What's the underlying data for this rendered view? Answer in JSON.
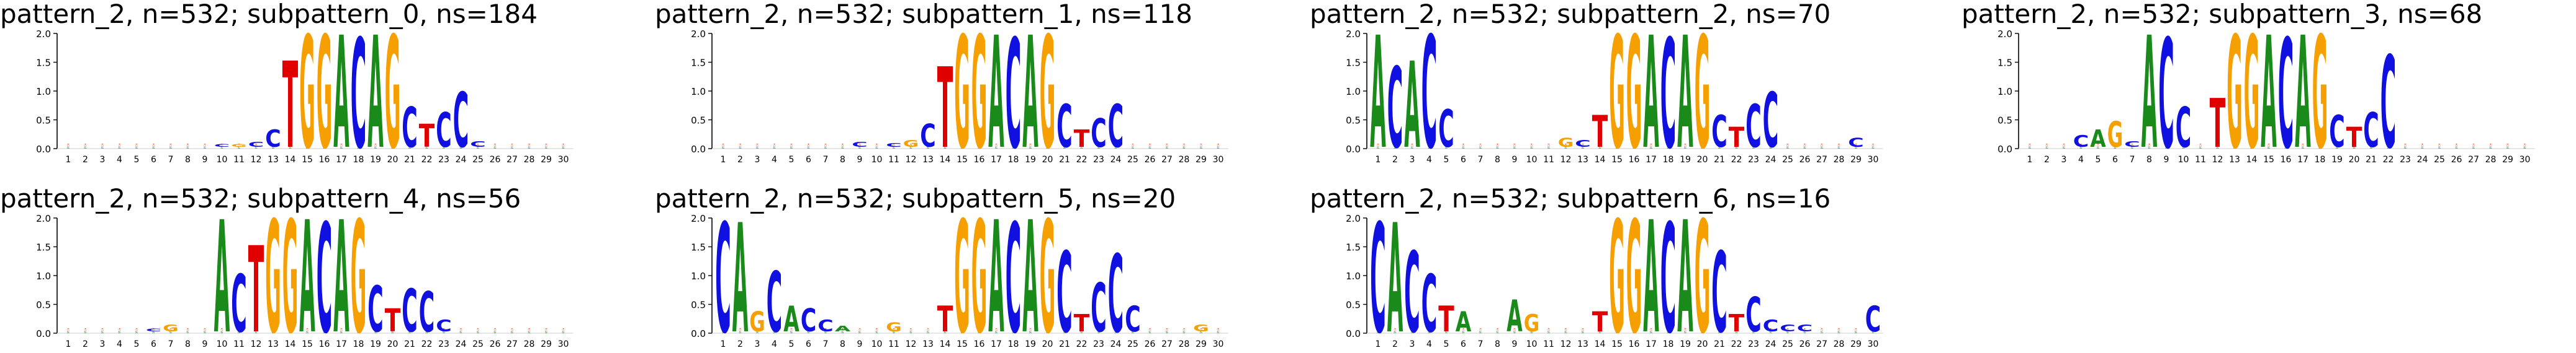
{
  "logo_colors": {
    "A": "#1a8a1a",
    "C": "#1010e0",
    "G": "#f5a000",
    "T": "#e00000"
  },
  "y_axis": {
    "ticks": [
      "0.0",
      "0.5",
      "1.0",
      "1.5",
      "2.0"
    ],
    "max": 2.0
  },
  "positions": [
    "1",
    "2",
    "3",
    "4",
    "5",
    "6",
    "7",
    "8",
    "9",
    "10",
    "11",
    "12",
    "13",
    "14",
    "15",
    "16",
    "17",
    "18",
    "19",
    "20",
    "21",
    "22",
    "23",
    "24",
    "25",
    "26",
    "27",
    "28",
    "29",
    "30"
  ],
  "panels": [
    {
      "title": "pattern_2, n=532; subpattern_0, ns=184",
      "motif": {
        "10": {
          "C": 0.05
        },
        "11": {
          "G": 0.05
        },
        "12": {
          "C": 0.08
        },
        "13": {
          "C": 0.3
        },
        "14": {
          "T": 1.5
        },
        "15": {
          "G": 1.95
        },
        "16": {
          "G": 1.95
        },
        "17": {
          "A": 1.95
        },
        "18": {
          "C": 1.9
        },
        "19": {
          "A": 1.95
        },
        "20": {
          "G": 1.95
        },
        "21": {
          "C": 0.7
        },
        "22": {
          "T": 0.4
        },
        "23": {
          "C": 0.6
        },
        "24": {
          "C": 0.95
        },
        "25": {
          "C": 0.1
        }
      }
    },
    {
      "title": "pattern_2, n=532; subpattern_1, ns=118",
      "motif": {
        "9": {
          "C": 0.08
        },
        "11": {
          "C": 0.06
        },
        "12": {
          "G": 0.12
        },
        "13": {
          "C": 0.4
        },
        "14": {
          "T": 1.4
        },
        "15": {
          "G": 1.95
        },
        "16": {
          "G": 1.95
        },
        "17": {
          "A": 1.95
        },
        "18": {
          "C": 1.9
        },
        "19": {
          "A": 1.95
        },
        "20": {
          "G": 1.95
        },
        "21": {
          "C": 0.75
        },
        "22": {
          "T": 0.3
        },
        "23": {
          "C": 0.5
        },
        "24": {
          "C": 0.75
        }
      }
    },
    {
      "title": "pattern_2, n=532; subpattern_2, ns=70",
      "motif": {
        "1": {
          "A": 1.95
        },
        "2": {
          "C": 1.4
        },
        "3": {
          "A": 1.5
        },
        "4": {
          "C": 1.95
        },
        "5": {
          "C": 0.65
        },
        "12": {
          "G": 0.15
        },
        "13": {
          "C": 0.12
        },
        "14": {
          "T": 0.55
        },
        "15": {
          "G": 1.95
        },
        "16": {
          "G": 1.95
        },
        "17": {
          "A": 1.95
        },
        "18": {
          "C": 1.9
        },
        "19": {
          "A": 1.95
        },
        "20": {
          "G": 1.95
        },
        "21": {
          "C": 0.55
        },
        "22": {
          "T": 0.35
        },
        "23": {
          "C": 0.75
        },
        "24": {
          "C": 0.95
        },
        "29": {
          "C": 0.15
        }
      }
    },
    {
      "title": "pattern_2, n=532; subpattern_3, ns=68",
      "motif": {
        "4": {
          "C": 0.2
        },
        "5": {
          "A": 0.3
        },
        "6": {
          "G": 0.45
        },
        "7": {
          "C": 0.1
        },
        "8": {
          "A": 1.95
        },
        "9": {
          "C": 1.9
        },
        "10": {
          "C": 0.7
        },
        "12": {
          "T": 0.85
        },
        "13": {
          "G": 1.95
        },
        "14": {
          "G": 1.95
        },
        "15": {
          "A": 1.95
        },
        "16": {
          "C": 1.9
        },
        "17": {
          "A": 1.95
        },
        "18": {
          "G": 1.95
        },
        "19": {
          "C": 0.55
        },
        "20": {
          "T": 0.35
        },
        "21": {
          "C": 0.6
        },
        "22": {
          "C": 1.6
        }
      }
    },
    {
      "title": "pattern_2, n=532; subpattern_4, ns=56",
      "motif": {
        "6": {
          "C": 0.05
        },
        "7": {
          "G": 0.12
        },
        "10": {
          "A": 1.95
        },
        "11": {
          "C": 1.0
        },
        "12": {
          "T": 1.5
        },
        "13": {
          "G": 1.95
        },
        "14": {
          "G": 1.95
        },
        "15": {
          "A": 1.95
        },
        "16": {
          "C": 1.9
        },
        "17": {
          "A": 1.95
        },
        "18": {
          "G": 1.95
        },
        "19": {
          "C": 0.8
        },
        "20": {
          "T": 0.4
        },
        "21": {
          "C": 0.75
        },
        "22": {
          "C": 0.7
        },
        "23": {
          "C": 0.2
        }
      }
    },
    {
      "title": "pattern_2, n=532; subpattern_5, ns=20",
      "motif": {
        "1": {
          "C": 1.9
        },
        "2": {
          "A": 1.9
        },
        "3": {
          "G": 0.35
        },
        "4": {
          "C": 1.05
        },
        "5": {
          "A": 0.45
        },
        "6": {
          "C": 0.4
        },
        "7": {
          "C": 0.2
        },
        "8": {
          "A": 0.1
        },
        "11": {
          "G": 0.15
        },
        "14": {
          "T": 0.45
        },
        "15": {
          "G": 1.95
        },
        "16": {
          "G": 1.95
        },
        "17": {
          "A": 1.95
        },
        "18": {
          "C": 1.9
        },
        "19": {
          "A": 1.95
        },
        "20": {
          "G": 1.95
        },
        "21": {
          "C": 1.4
        },
        "22": {
          "T": 0.3
        },
        "23": {
          "C": 0.85
        },
        "24": {
          "C": 1.35
        },
        "25": {
          "C": 0.45
        },
        "29": {
          "G": 0.12
        }
      }
    },
    {
      "title": "pattern_2, n=532; subpattern_6, ns=16",
      "motif": {
        "1": {
          "C": 1.9
        },
        "2": {
          "A": 1.9
        },
        "3": {
          "C": 1.4
        },
        "4": {
          "C": 1.0
        },
        "5": {
          "T": 0.45
        },
        "6": {
          "A": 0.35
        },
        "9": {
          "A": 0.55
        },
        "10": {
          "G": 0.3
        },
        "14": {
          "T": 0.35
        },
        "15": {
          "G": 1.95
        },
        "16": {
          "G": 1.95
        },
        "17": {
          "A": 1.95
        },
        "18": {
          "C": 1.9
        },
        "19": {
          "A": 1.95
        },
        "20": {
          "G": 1.95
        },
        "21": {
          "C": 1.4
        },
        "22": {
          "T": 0.3
        },
        "23": {
          "C": 0.6
        },
        "24": {
          "C": 0.2
        },
        "25": {
          "C": 0.12
        },
        "26": {
          "C": 0.12
        },
        "30": {
          "C": 0.45
        }
      }
    }
  ]
}
